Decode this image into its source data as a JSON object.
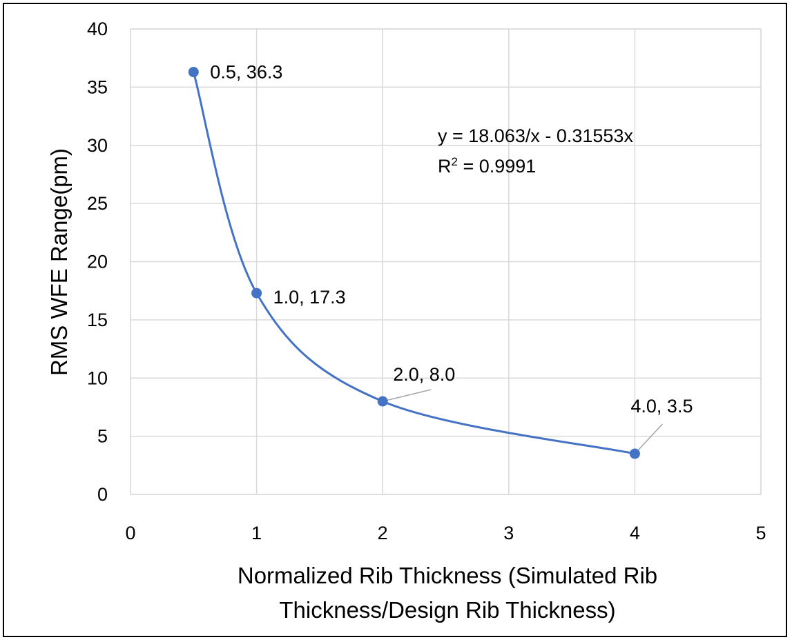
{
  "chart_data": {
    "type": "scatter",
    "title": "",
    "xlabel": "Normalized Rib Thickness (Simulated Rib Thickness/Design Rib Thickness)",
    "xlabel_lines": [
      "Normalized Rib Thickness (Simulated Rib",
      "Thickness/Design Rib Thickness)"
    ],
    "ylabel": "RMS WFE Range(pm)",
    "xlim": [
      0,
      5
    ],
    "ylim": [
      0,
      40
    ],
    "xticks": [
      0,
      1,
      2,
      3,
      4,
      5
    ],
    "yticks": [
      0,
      5,
      10,
      15,
      20,
      25,
      30,
      35,
      40
    ],
    "grid": true,
    "legend": "none",
    "series": [
      {
        "x": [
          0.5,
          1.0,
          2.0,
          4.0
        ],
        "y": [
          36.3,
          17.3,
          8.0,
          3.5
        ],
        "color": "#4472C4",
        "smooth_line": true
      }
    ],
    "data_labels": [
      "0.5, 36.3",
      "1.0, 17.3",
      "2.0, 8.0",
      "4.0, 3.5"
    ],
    "trendline": {
      "equation": "y = 18.063/x - 0.31553x",
      "r2_prefix": "R",
      "r2_sup": "2",
      "r2_value": " = 0.9991"
    }
  }
}
